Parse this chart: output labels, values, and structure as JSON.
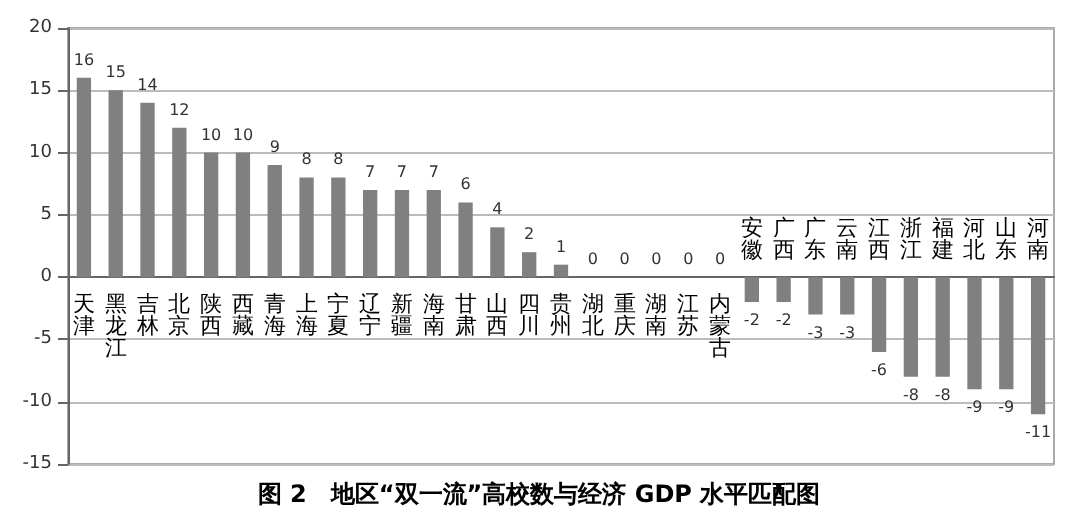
{
  "chart_data": {
    "type": "bar",
    "title": "图 2　地区“双一流”高校数与经济 GDP 水平匹配图",
    "categories": [
      "天津",
      "黑龙江",
      "吉林",
      "北京",
      "陕西",
      "西藏",
      "青海",
      "上海",
      "宁夏",
      "辽宁",
      "新疆",
      "海南",
      "甘肃",
      "山西",
      "四川",
      "贵州",
      "湖北",
      "重庆",
      "湖南",
      "江苏",
      "内蒙古",
      "安徽",
      "广西",
      "广东",
      "云南",
      "江西",
      "浙江",
      "福建",
      "河北",
      "山东",
      "河南"
    ],
    "values": [
      16,
      15,
      14,
      12,
      10,
      10,
      9,
      8,
      8,
      7,
      7,
      7,
      6,
      4,
      2,
      1,
      0,
      0,
      0,
      0,
      0,
      -2,
      -2,
      -3,
      -3,
      -6,
      -8,
      -8,
      -9,
      -9,
      -11
    ],
    "color": "#808080",
    "ylim": [
      -15,
      20
    ],
    "yticks": [
      -15,
      -10,
      -5,
      0,
      5,
      10,
      15,
      20
    ],
    "grid": "y",
    "data_labels": true
  }
}
